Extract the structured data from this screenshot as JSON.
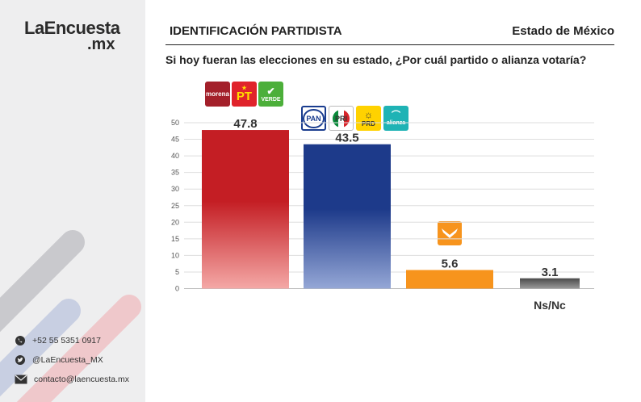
{
  "brand": {
    "name": "LaEncuesta",
    "tld": ".mx"
  },
  "header": {
    "title": "IDENTIFICACIÓN PARTIDISTA",
    "region": "Estado de México"
  },
  "question": "Si hoy fueran las elecciones en su estado, ¿Por cuál partido o alianza votaría?",
  "contacts": {
    "phone": "+52 55 5351 0917",
    "twitter": "@LaEncuesta_MX",
    "email": "contacto@laencuesta.mx"
  },
  "party_logos": {
    "morena": "morena",
    "pt": "PT",
    "verde": "VERDE",
    "pan": "PAN",
    "pri": "PRI",
    "prd": "PRD",
    "alianza": "alianza"
  },
  "colors": {
    "bar1_top": "#c41e24",
    "bar1_bottom": "#f4a8a6",
    "bar2_top": "#1d3a8a",
    "bar2_bottom": "#95a7d6",
    "bar3": "#f7941d",
    "bar4": "#606060"
  },
  "chart_data": {
    "type": "bar",
    "categories": [
      "Morena-PT-Verde",
      "PAN-PRI-PRD-Nueva Alianza",
      "Movimiento Ciudadano",
      "Ns/Nc"
    ],
    "visible_category_labels": [
      "",
      "",
      "",
      "Ns/Nc"
    ],
    "values": [
      47.8,
      43.5,
      5.6,
      3.1
    ],
    "value_labels": [
      "47.8",
      "43.5",
      "5.6",
      "3.1"
    ],
    "yticks": [
      0,
      5,
      10,
      15,
      20,
      25,
      30,
      35,
      40,
      45,
      50
    ],
    "ylim": [
      0,
      50
    ],
    "grid": true,
    "title": "",
    "xlabel": "",
    "ylabel": ""
  }
}
